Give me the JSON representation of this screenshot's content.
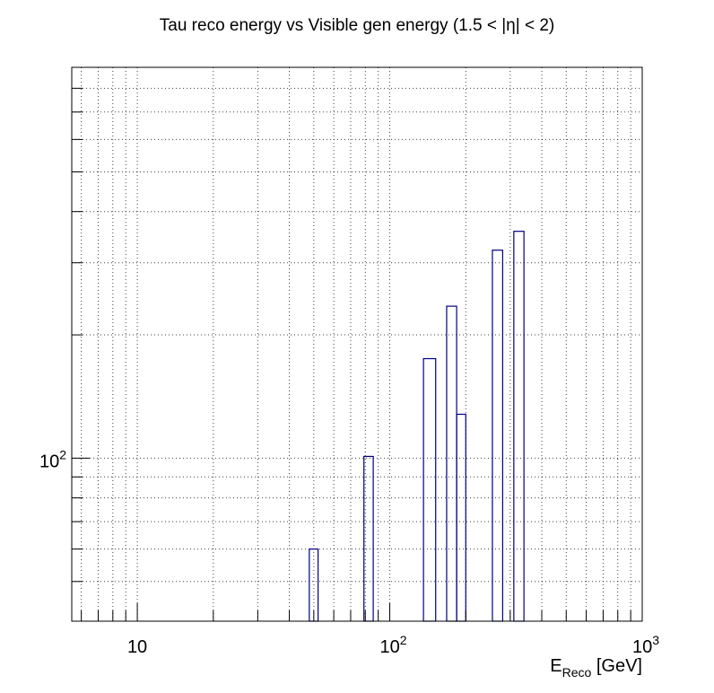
{
  "chart_data": {
    "type": "bar",
    "title": "Tau reco energy vs Visible gen energy (1.5 < |η| < 2)",
    "xlabel_main": "E",
    "xlabel_sub": "Reco",
    "xlabel_unit": " [GeV]",
    "ylabel": "",
    "x_scale": "log",
    "y_scale": "log",
    "xlim": [
      5.5,
      1000
    ],
    "ylim": [
      40,
      900
    ],
    "grid": true,
    "x_tick_labels": [
      {
        "value": 10,
        "base": "10",
        "exp": ""
      },
      {
        "value": 100,
        "base": "10",
        "exp": "2"
      },
      {
        "value": 1000,
        "base": "10",
        "exp": "3"
      }
    ],
    "y_tick_labels": [
      {
        "value": 100,
        "base": "10",
        "exp": "2"
      }
    ],
    "bins": [
      {
        "x_low": 48,
        "x_high": 52,
        "value": 60
      },
      {
        "x_low": 79,
        "x_high": 86,
        "value": 101
      },
      {
        "x_low": 136,
        "x_high": 152,
        "value": 175
      },
      {
        "x_low": 168,
        "x_high": 184,
        "value": 235
      },
      {
        "x_low": 184,
        "x_high": 200,
        "value": 128
      },
      {
        "x_low": 255,
        "x_high": 280,
        "value": 322
      },
      {
        "x_low": 310,
        "x_high": 340,
        "value": 358
      }
    ]
  }
}
